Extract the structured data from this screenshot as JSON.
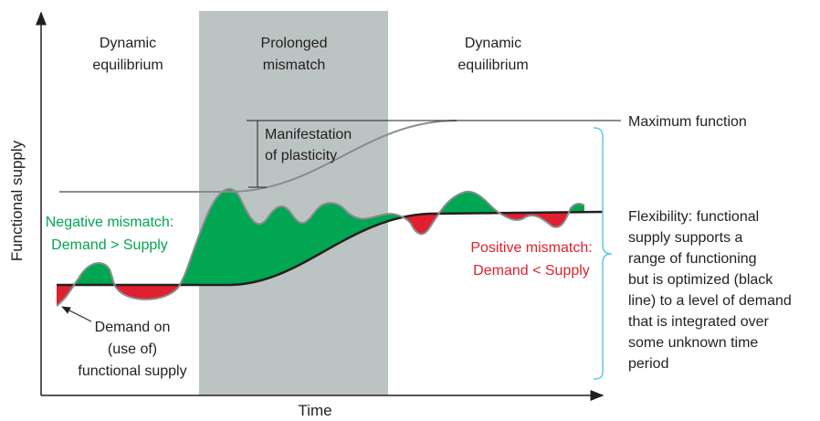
{
  "regions": [
    {
      "label": [
        "Dynamic",
        "equilibrium"
      ]
    },
    {
      "label": [
        "Prolonged",
        "mismatch"
      ]
    },
    {
      "label": [
        "Dynamic",
        "equilibrium"
      ]
    }
  ],
  "annotations": {
    "plasticity": [
      "Manifestation",
      "of plasticity"
    ],
    "maximum": "Maximum function",
    "negative": [
      "Negative mismatch:",
      "Demand > Supply"
    ],
    "positive": [
      "Positive mismatch:",
      "Demand < Supply"
    ],
    "demand": [
      "Demand on",
      "(use of)",
      "functional supply"
    ],
    "flexibility": [
      "Flexibility: functional",
      "supply supports a",
      "range of functioning",
      "but is optimized (black",
      "line) to a level of demand",
      "that is integrated over",
      "some unknown time",
      "period"
    ]
  },
  "axes": {
    "y": "Functional supply",
    "x": "Time"
  }
}
